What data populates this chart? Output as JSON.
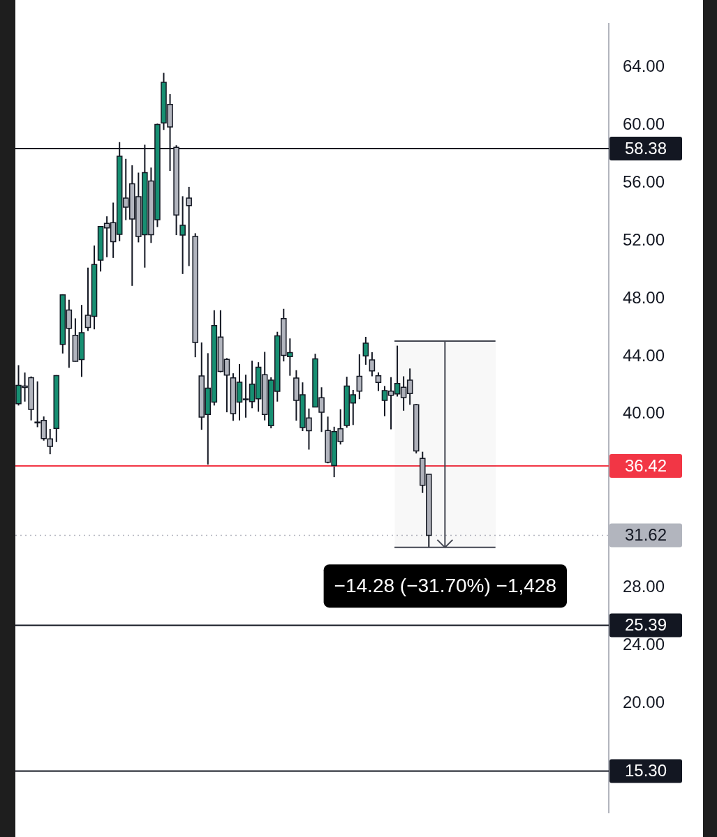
{
  "chart_data": {
    "type": "candlestick",
    "categories": [
      null,
      null,
      null,
      null,
      null,
      null,
      null,
      null,
      null,
      null,
      null,
      null,
      null,
      null,
      null,
      null,
      null,
      null,
      null,
      null,
      null,
      null,
      null,
      null,
      null,
      null,
      null,
      null,
      null,
      null,
      null,
      null,
      null,
      null,
      null,
      null,
      null,
      null,
      null,
      null,
      null,
      null,
      null,
      null,
      null,
      null,
      null,
      null,
      null,
      null,
      null,
      null,
      null,
      null,
      null,
      null,
      null,
      null,
      null,
      null,
      null,
      null,
      null,
      null,
      null,
      null,
      null,
      null,
      null,
      null,
      null,
      null,
      null,
      null,
      null,
      null,
      null,
      null,
      null,
      null,
      null,
      null,
      null,
      null,
      null,
      null,
      null,
      null,
      null,
      null,
      null,
      null,
      null,
      null
    ],
    "ohlc": [
      [
        40.72,
        43.39,
        40.6,
        41.99
      ],
      [
        41.95,
        42.88,
        40.87,
        41.85
      ],
      [
        42.52,
        42.61,
        39.57,
        40.33
      ],
      [
        39.45,
        42.27,
        39.1,
        39.4
      ],
      [
        39.57,
        39.84,
        38.17,
        38.31
      ],
      [
        38.29,
        38.98,
        37.23,
        37.77
      ],
      [
        39.01,
        42.7,
        38.07,
        42.67
      ],
      [
        44.83,
        48.3,
        44.2,
        48.25
      ],
      [
        47.2,
        47.92,
        43.21,
        45.94
      ],
      [
        45.46,
        46.63,
        43.64,
        43.66
      ],
      [
        43.78,
        47.56,
        42.58,
        45.64
      ],
      [
        46.84,
        50.14,
        45.76,
        46.0
      ],
      [
        46.77,
        51.67,
        45.87,
        50.36
      ],
      [
        50.66,
        52.98,
        49.87,
        52.98
      ],
      [
        53.2,
        53.69,
        50.86,
        52.89
      ],
      [
        53.25,
        54.64,
        50.81,
        51.94
      ],
      [
        52.44,
        58.82,
        51.97,
        57.85
      ],
      [
        54.95,
        57.67,
        53.43,
        54.32
      ],
      [
        55.94,
        57.22,
        48.88,
        53.51
      ],
      [
        55.05,
        56.71,
        51.89,
        52.3
      ],
      [
        52.42,
        58.64,
        50.14,
        56.71
      ],
      [
        56.14,
        57.07,
        51.85,
        52.42
      ],
      [
        53.46,
        60.1,
        52.95,
        60.04
      ],
      [
        60.15,
        63.62,
        59.67,
        62.97
      ],
      [
        61.43,
        62.14,
        56.84,
        59.87
      ],
      [
        58.46,
        58.61,
        52.39,
        53.78
      ],
      [
        52.39,
        55.08,
        49.7,
        53.07
      ],
      [
        54.95,
        55.73,
        50.25,
        54.43
      ],
      [
        52.3,
        52.52,
        43.94,
        44.96
      ],
      [
        42.64,
        44.96,
        38.92,
        39.8
      ],
      [
        39.98,
        44.22,
        36.51,
        41.8
      ],
      [
        40.84,
        47.19,
        40.6,
        46.13
      ],
      [
        45.33,
        47.19,
        42.9,
        42.96
      ],
      [
        43.79,
        43.88,
        40.13,
        42.7
      ],
      [
        42.51,
        42.83,
        39.54,
        40.04
      ],
      [
        40.84,
        43.47,
        39.57,
        42.21
      ],
      [
        41.05,
        42.73,
        39.76,
        41.0
      ],
      [
        40.87,
        43.7,
        40.41,
        42.08
      ],
      [
        41.06,
        43.6,
        40.17,
        43.25
      ],
      [
        42.73,
        44.31,
        39.57,
        39.98
      ],
      [
        39.2,
        42.55,
        39.02,
        42.36
      ],
      [
        41.58,
        45.7,
        40.87,
        45.42
      ],
      [
        46.61,
        47.29,
        43.65,
        44.07
      ],
      [
        43.98,
        45.24,
        42.66,
        44.26
      ],
      [
        42.5,
        43.04,
        39.55,
        40.95
      ],
      [
        39.07,
        42.2,
        38.83,
        41.34
      ],
      [
        39.74,
        40.39,
        37.55,
        38.86
      ],
      [
        40.5,
        44.18,
        40.5,
        43.83
      ],
      [
        41.14,
        41.86,
        38.77,
        40.13
      ],
      [
        38.87,
        39.83,
        36.6,
        36.67
      ],
      [
        36.44,
        39.13,
        35.64,
        38.8
      ],
      [
        38.99,
        40.34,
        37.9,
        38.11
      ],
      [
        39.22,
        42.59,
        39.07,
        41.95
      ],
      [
        40.77,
        41.68,
        39.25,
        41.34
      ],
      [
        42.62,
        44.14,
        41.04,
        41.6
      ],
      [
        44.03,
        45.35,
        43.42,
        44.91
      ],
      [
        43.76,
        44.29,
        42.62,
        42.99
      ],
      [
        42.66,
        42.89,
        41.6,
        42.2
      ],
      [
        40.95,
        41.95,
        39.86,
        41.63
      ],
      [
        41.6,
        42.56,
        38.95,
        41.3
      ],
      [
        41.4,
        44.74,
        41.22,
        42.13
      ],
      [
        41.86,
        42.62,
        40.24,
        41.15
      ],
      [
        42.36,
        43.16,
        40.65,
        41.42
      ],
      [
        40.65,
        40.7,
        37.28,
        37.46
      ],
      [
        36.94,
        37.4,
        34.55,
        35.08
      ],
      [
        35.84,
        35.84,
        30.76,
        31.62
      ],
      null,
      null,
      null,
      null,
      null,
      null,
      null,
      null,
      null,
      null,
      null,
      null,
      null,
      null,
      null,
      null,
      null,
      null,
      null,
      null,
      null,
      null,
      null,
      null,
      null,
      null,
      null,
      null
    ],
    "colors": [
      "#178f72",
      "#b2b5be",
      "#b2b5be",
      "#b2b5be",
      "#b2b5be",
      "#b2b5be",
      "#178f72",
      "#178f72",
      "#b2b5be",
      "#b2b5be",
      "#178f72",
      "#b2b5be",
      "#178f72",
      "#178f72",
      "#b2b5be",
      "#b2b5be",
      "#178f72",
      "#b2b5be",
      "#b2b5be",
      "#b2b5be",
      "#178f72",
      "#b2b5be",
      "#178f72",
      "#178f72",
      "#b2b5be",
      "#b2b5be",
      "#178f72",
      "#b2b5be",
      "#b2b5be",
      "#b2b5be",
      "#178f72",
      "#178f72",
      "#b2b5be",
      "#b2b5be",
      "#b2b5be",
      "#178f72",
      "#b2b5be",
      "#178f72",
      "#178f72",
      "#b2b5be",
      "#178f72",
      "#178f72",
      "#b2b5be",
      "#178f72",
      "#b2b5be",
      "#178f72",
      "#b2b5be",
      "#178f72",
      "#b2b5be",
      "#b2b5be",
      "#178f72",
      "#b2b5be",
      "#178f72",
      "#178f72",
      "#b2b5be",
      "#178f72",
      "#b2b5be",
      "#b2b5be",
      "#178f72",
      "#b2b5be",
      "#178f72",
      "#b2b5be",
      "#b2b5be",
      "#b2b5be",
      "#b2b5be",
      "#b2b5be",
      null,
      null,
      null,
      null,
      null,
      null,
      null,
      null,
      null,
      null,
      null,
      null,
      null,
      null,
      null,
      null,
      null,
      null,
      null,
      null,
      null,
      null,
      null,
      null,
      null,
      null,
      null,
      null
    ],
    "ylim": [
      12.4,
      67
    ],
    "yticks": [
      {
        "value": 20,
        "label": "20.00"
      },
      {
        "value": 24,
        "label": "24.00"
      },
      {
        "value": 28,
        "label": "28.00"
      },
      {
        "value": 40,
        "label": "40.00"
      },
      {
        "value": 44,
        "label": "44.00"
      },
      {
        "value": 48,
        "label": "48.00"
      },
      {
        "value": 52,
        "label": "52.00"
      },
      {
        "value": 56,
        "label": "56.00"
      },
      {
        "value": 60,
        "label": "60.00"
      },
      {
        "value": 64,
        "label": "64.00"
      }
    ],
    "ref_lines": [
      {
        "axis": "y",
        "value": 58.38,
        "label": "58.38",
        "color": "#131722"
      },
      {
        "axis": "y",
        "value": 36.42,
        "label": "36.42",
        "color": "#f23645"
      },
      {
        "axis": "y",
        "value": 31.62,
        "label": "31.62",
        "color": "#b2b5be",
        "line_style": "dotted"
      },
      {
        "axis": "y",
        "value": 25.39,
        "label": "25.39",
        "color": "#131722"
      },
      {
        "axis": "y",
        "value": 15.3,
        "label": "15.30",
        "color": "#131722"
      }
    ],
    "bands": [
      {
        "axis": "y",
        "from": 45.04,
        "to": 30.76,
        "label": "−14.28 (−31.70%) −1,428",
        "color": "#434651"
      }
    ],
    "tick_labels": "y",
    "grid": false,
    "legend": false
  }
}
